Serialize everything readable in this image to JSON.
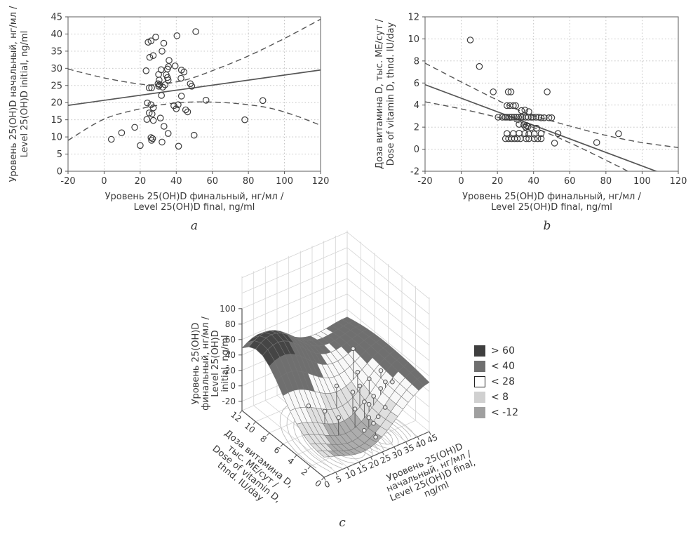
{
  "figure": {
    "panel_a_label": "a",
    "panel_b_label": "b",
    "panel_c_label": "c"
  },
  "chart_data": [
    {
      "id": "a",
      "type": "scatter",
      "xlabel_lines": [
        "Уровень 25(OH)D финальный, нг/мл /",
        "Level 25(OH)D final, ng/ml"
      ],
      "ylabel_lines": [
        "Уровень 25(OH)D начальный, нг/мл /",
        "Level 25(OH)D initial, ng/ml"
      ],
      "xlim": [
        -20,
        120
      ],
      "ylim": [
        0,
        45
      ],
      "xticks": [
        -20,
        0,
        20,
        40,
        60,
        80,
        100,
        120
      ],
      "yticks": [
        0,
        5,
        10,
        15,
        20,
        25,
        30,
        35,
        40,
        45
      ],
      "grid": true,
      "points": [
        [
          4,
          9.3
        ],
        [
          9.7,
          11.2
        ],
        [
          17,
          12.8
        ],
        [
          20,
          7.5
        ],
        [
          23.3,
          29.3
        ],
        [
          24.4,
          37.6
        ],
        [
          26,
          38
        ],
        [
          28.6,
          39.1
        ],
        [
          25.3,
          33.2
        ],
        [
          27.2,
          33.7
        ],
        [
          33.1,
          37.3
        ],
        [
          32.1,
          35
        ],
        [
          40.4,
          39.5
        ],
        [
          50.8,
          40.7
        ],
        [
          31.6,
          29.6
        ],
        [
          35.1,
          29.8
        ],
        [
          30.2,
          28.2
        ],
        [
          34.4,
          28.1
        ],
        [
          30.5,
          26.6
        ],
        [
          35.1,
          27.3
        ],
        [
          35.5,
          26.6
        ],
        [
          29.9,
          25.5
        ],
        [
          30.8,
          25.2
        ],
        [
          30.3,
          24.8
        ],
        [
          33.8,
          25.2
        ],
        [
          32.5,
          24.5
        ],
        [
          25,
          24.3
        ],
        [
          26.3,
          24.3
        ],
        [
          36,
          32.3
        ],
        [
          35.7,
          30.5
        ],
        [
          39.4,
          30.7
        ],
        [
          42.9,
          29.5
        ],
        [
          44.3,
          28.9
        ],
        [
          42.6,
          27.1
        ],
        [
          48.6,
          24.8
        ],
        [
          47.8,
          25.5
        ],
        [
          31.8,
          22.1
        ],
        [
          42.9,
          21.9
        ],
        [
          41,
          19.4
        ],
        [
          38.7,
          19.1
        ],
        [
          40,
          18.2
        ],
        [
          45.2,
          17.9
        ],
        [
          46.3,
          17.3
        ],
        [
          24,
          19.9
        ],
        [
          26,
          19.4
        ],
        [
          27.3,
          18.5
        ],
        [
          25,
          17
        ],
        [
          26.6,
          16.7
        ],
        [
          23.7,
          15.1
        ],
        [
          27.3,
          14.8
        ],
        [
          31.2,
          15.5
        ],
        [
          33.2,
          13.1
        ],
        [
          26,
          9.8
        ],
        [
          26.9,
          9.5
        ],
        [
          26.3,
          9
        ],
        [
          32.1,
          8.5
        ],
        [
          41.3,
          7.3
        ],
        [
          35.5,
          11
        ],
        [
          49.9,
          10.5
        ],
        [
          56.5,
          20.7
        ],
        [
          78,
          15
        ],
        [
          88,
          20.6
        ]
      ],
      "regression": [
        [
          -20,
          19.2
        ],
        [
          120,
          29.5
        ]
      ],
      "ci_upper": [
        [
          -20,
          29.8
        ],
        [
          0,
          27.2
        ],
        [
          20,
          25.4
        ],
        [
          30,
          25.3
        ],
        [
          45,
          26.6
        ],
        [
          60,
          29.3
        ],
        [
          80,
          33.6
        ],
        [
          100,
          38.7
        ],
        [
          120,
          44.3
        ]
      ],
      "ci_lower": [
        [
          -20,
          9
        ],
        [
          0,
          15.2
        ],
        [
          20,
          18.2
        ],
        [
          35,
          19.6
        ],
        [
          50,
          20.2
        ],
        [
          70,
          19.9
        ],
        [
          90,
          18.6
        ],
        [
          105,
          16.4
        ],
        [
          120,
          13.4
        ]
      ]
    },
    {
      "id": "b",
      "type": "scatter",
      "xlabel_lines": [
        "Уровень 25(OH)D финальный, нг/мл /",
        "Level 25(OH)D final, ng/ml"
      ],
      "ylabel_lines": [
        "Доза витамина D, тыс. МЕ/сут /",
        "Dose of vitamin D, thnd. IU/day"
      ],
      "xlim": [
        -20,
        120
      ],
      "ylim": [
        -2,
        12
      ],
      "xticks": [
        -20,
        0,
        20,
        40,
        60,
        80,
        100,
        120
      ],
      "yticks": [
        -2,
        0,
        2,
        4,
        6,
        8,
        10,
        12
      ],
      "grid": true,
      "points": [
        [
          5,
          9.9
        ],
        [
          10,
          7.5
        ],
        [
          17.7,
          5.2
        ],
        [
          26,
          5.2
        ],
        [
          27.5,
          5.2
        ],
        [
          47.5,
          5.2
        ],
        [
          25.3,
          3.95
        ],
        [
          26.9,
          3.95
        ],
        [
          28.8,
          3.95
        ],
        [
          30.1,
          3.95
        ],
        [
          33.3,
          3.5
        ],
        [
          35.2,
          3.55
        ],
        [
          37.4,
          3.4
        ],
        [
          20.4,
          2.9
        ],
        [
          22.7,
          2.9
        ],
        [
          24.3,
          2.9
        ],
        [
          25.3,
          2.9
        ],
        [
          26.6,
          2.9
        ],
        [
          27.9,
          2.9
        ],
        [
          29.2,
          2.9
        ],
        [
          30.5,
          2.9
        ],
        [
          31.7,
          2.9
        ],
        [
          33,
          2.9
        ],
        [
          33.9,
          2.9
        ],
        [
          35.6,
          2.9
        ],
        [
          37.1,
          2.9
        ],
        [
          38.7,
          2.9
        ],
        [
          39.7,
          2.9
        ],
        [
          41.4,
          2.9
        ],
        [
          42.9,
          2.9
        ],
        [
          44.2,
          2.85
        ],
        [
          45.9,
          2.85
        ],
        [
          48.5,
          2.85
        ],
        [
          50,
          2.85
        ],
        [
          32,
          2.25
        ],
        [
          34.6,
          2.2
        ],
        [
          36.1,
          2.15
        ],
        [
          35.6,
          2
        ],
        [
          36.9,
          2.05
        ],
        [
          38.7,
          1.95
        ],
        [
          41.7,
          1.9
        ],
        [
          25.3,
          1.42
        ],
        [
          28.8,
          1.42
        ],
        [
          32,
          1.45
        ],
        [
          35.2,
          1.42
        ],
        [
          37.4,
          1.38
        ],
        [
          40.4,
          1.38
        ],
        [
          44.2,
          1.42
        ],
        [
          53.5,
          1.42
        ],
        [
          24.5,
          0.95
        ],
        [
          26.2,
          0.95
        ],
        [
          27.9,
          0.95
        ],
        [
          29.5,
          0.95
        ],
        [
          31,
          0.95
        ],
        [
          32.7,
          0.95
        ],
        [
          35.9,
          0.95
        ],
        [
          37.4,
          0.95
        ],
        [
          40.4,
          0.95
        ],
        [
          42.3,
          0.95
        ],
        [
          44.2,
          0.95
        ],
        [
          51.6,
          0.55
        ],
        [
          74.9,
          0.6
        ],
        [
          87,
          1.4
        ]
      ],
      "regression": [
        [
          -20,
          5.85
        ],
        [
          120,
          -2.75
        ]
      ],
      "ci_upper": [
        [
          -20,
          7.8
        ],
        [
          0,
          6.1
        ],
        [
          20,
          4.45
        ],
        [
          35,
          3.3
        ],
        [
          45,
          2.8
        ],
        [
          60,
          2.1
        ],
        [
          80,
          1.25
        ],
        [
          100,
          0.6
        ],
        [
          120,
          0.15
        ]
      ],
      "ci_lower": [
        [
          -20,
          4.3
        ],
        [
          0,
          3.65
        ],
        [
          20,
          2.9
        ],
        [
          35,
          2.25
        ],
        [
          50,
          1.3
        ],
        [
          65,
          0.2
        ],
        [
          80,
          -1
        ],
        [
          92,
          -2
        ],
        [
          100,
          -2.9
        ]
      ]
    },
    {
      "id": "c",
      "type": "surface3d",
      "zlabel_lines": [
        "Уровень 25(OH)D",
        "финальный, нг/мл /",
        "Level 25(OH)D",
        "initial, ng/ml"
      ],
      "xlabel_lines": [
        "Доза витамина D,",
        "тыс. МЕ/сут /",
        "Dose of vitamin D,",
        "thnd. IU/day"
      ],
      "ylabel_lines": [
        "Уровень 25(OH)D",
        "начальный, нг/мл /",
        "Level 25(OH)D final,",
        "ng/ml"
      ],
      "zlim": [
        -20,
        100
      ],
      "zticks": [
        -20,
        0,
        20,
        40,
        60,
        80,
        100
      ],
      "dose_ticks": [
        0,
        2,
        4,
        6,
        8,
        10,
        12
      ],
      "level_ticks": [
        0,
        5,
        10,
        15,
        20,
        25,
        30,
        35,
        40,
        45
      ],
      "dose_range": [
        0,
        12
      ],
      "level_range": [
        0,
        45
      ],
      "surface_model": [
        {
          "a": 80,
          "cl": 8,
          "cd": 9.5,
          "sl": 338,
          "sd": 23.1
        },
        {
          "a": -35,
          "cl": 19,
          "cd": 3.5,
          "sl": 288,
          "sd": 40.5
        },
        {
          "a": 40,
          "cl": 45,
          "cd": 5,
          "sl": 338,
          "sd": 162
        }
      ],
      "bands": [
        {
          "min": 60,
          "color": "#454545"
        },
        {
          "min": 28,
          "color": "#6f6f6f"
        },
        {
          "min": 8,
          "color": "#f8f8f8"
        },
        {
          "min": -12,
          "color": "#e0e0e0"
        },
        {
          "min": -999,
          "color": "#adadad"
        }
      ],
      "floor_contours": [
        {
          "cl": 17,
          "cd": 3,
          "n": 8,
          "rl0": 2,
          "drl": 1.8,
          "rd0": 1,
          "drd": 0.8
        },
        {
          "cl": 30,
          "cd": 2,
          "n": 6,
          "rl0": 1.5,
          "drl": 1.5,
          "rd0": 0.8,
          "drd": 0.65
        }
      ],
      "points3d": [
        [
          8,
          5,
          14
        ],
        [
          12,
          4,
          9
        ],
        [
          15,
          3,
          4
        ],
        [
          20,
          5,
          24
        ],
        [
          22,
          3,
          6
        ],
        [
          24,
          4,
          18
        ],
        [
          25,
          2,
          -2
        ],
        [
          26,
          3,
          10
        ],
        [
          27,
          2,
          -12
        ],
        [
          27,
          4,
          22
        ],
        [
          28,
          3,
          4
        ],
        [
          29,
          2,
          -6
        ],
        [
          29,
          5,
          30
        ],
        [
          30,
          3,
          12
        ],
        [
          31,
          4,
          26
        ],
        [
          32,
          2,
          2
        ],
        [
          33,
          3,
          18
        ],
        [
          30,
          6,
          52
        ],
        [
          35,
          3,
          24
        ],
        [
          36,
          4,
          30
        ],
        [
          38,
          3,
          20
        ],
        [
          25,
          1,
          -20
        ],
        [
          23,
          2,
          -16
        ]
      ],
      "legend": [
        {
          "label": "> 60",
          "color": "#3f3f3f"
        },
        {
          "label": "< 40",
          "color": "#6f6f6f"
        },
        {
          "label": "< 28",
          "color": "#ffffff"
        },
        {
          "label": "< 8",
          "color": "#d0d0d0"
        },
        {
          "label": "< -12",
          "color": "#9f9f9f"
        }
      ]
    }
  ]
}
